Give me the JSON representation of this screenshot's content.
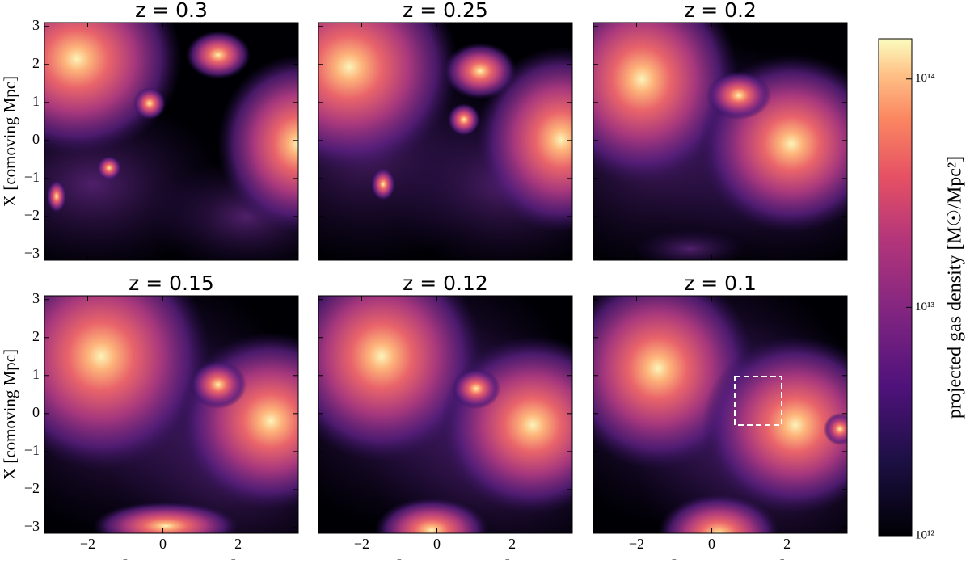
{
  "chart_data": [
    {
      "type": "image",
      "title": "z = 0.3",
      "xlim": [
        -3.15,
        3.6
      ],
      "ylim": [
        -3.15,
        3.1
      ],
      "xticks": [
        -2,
        0,
        2
      ],
      "yticks": [
        {
          "value": -3,
          "label": "−3"
        },
        {
          "value": -2,
          "label": "−2"
        },
        {
          "value": -1,
          "label": "−1"
        },
        0,
        1,
        2,
        3
      ],
      "ylabel": "X [comoving Mpc]"
    },
    {
      "type": "image",
      "title": "z = 0.25",
      "xlim": [
        -3.15,
        3.6
      ],
      "ylim": [
        -3.15,
        3.1
      ],
      "xticks": [
        -2,
        0,
        2
      ],
      "yticks": [
        -3,
        -2,
        -1,
        0,
        1,
        2,
        3
      ]
    },
    {
      "type": "image",
      "title": "z = 0.2",
      "xlim": [
        -3.15,
        3.6
      ],
      "ylim": [
        -3.15,
        3.1
      ],
      "xticks": [
        -2,
        0,
        2
      ],
      "yticks": [
        -3,
        -2,
        -1,
        0,
        1,
        2,
        3
      ]
    },
    {
      "type": "image",
      "title": "z = 0.15",
      "xlim": [
        -3.15,
        3.6
      ],
      "ylim": [
        -3.15,
        3.1
      ],
      "xticks": [
        {
          "value": -2,
          "label": "−2"
        },
        0,
        2
      ],
      "yticks": [
        {
          "value": -3,
          "label": "−3"
        },
        {
          "value": -2,
          "label": "−2"
        },
        {
          "value": -1,
          "label": "−1"
        },
        0,
        1,
        2,
        3
      ],
      "xlabel": "Y [comoving Mpc]",
      "ylabel": "X [comoving Mpc]"
    },
    {
      "type": "image",
      "title": "z = 0.12",
      "xlim": [
        -3.15,
        3.6
      ],
      "ylim": [
        -3.15,
        3.1
      ],
      "xticks": [
        {
          "value": -2,
          "label": "−2"
        },
        0,
        2
      ],
      "yticks": [
        -3,
        -2,
        -1,
        0,
        1,
        2,
        3
      ],
      "xlabel": "Y [comoving Mpc]"
    },
    {
      "type": "image",
      "title": "z = 0.1",
      "xlim": [
        -3.15,
        3.6
      ],
      "ylim": [
        -3.15,
        3.1
      ],
      "xticks": [
        {
          "value": -2,
          "label": "−2"
        },
        0,
        2
      ],
      "yticks": [
        -3,
        -2,
        -1,
        0,
        1,
        2,
        3
      ],
      "xlabel": "Y [comoving Mpc]"
    },
    {
      "type": "colorbar",
      "label": "projected gas density [M☉/Mpc²]",
      "log_scale": true,
      "ylim": [
        1000000000000.0,
        150000000000000.0
      ],
      "yticks": [
        {
          "value": 1000000000000.0,
          "label": "10¹²"
        },
        {
          "value": 10000000000000.0,
          "label": "10¹³"
        },
        {
          "value": 100000000000000.0,
          "label": "10¹⁴"
        }
      ]
    }
  ]
}
